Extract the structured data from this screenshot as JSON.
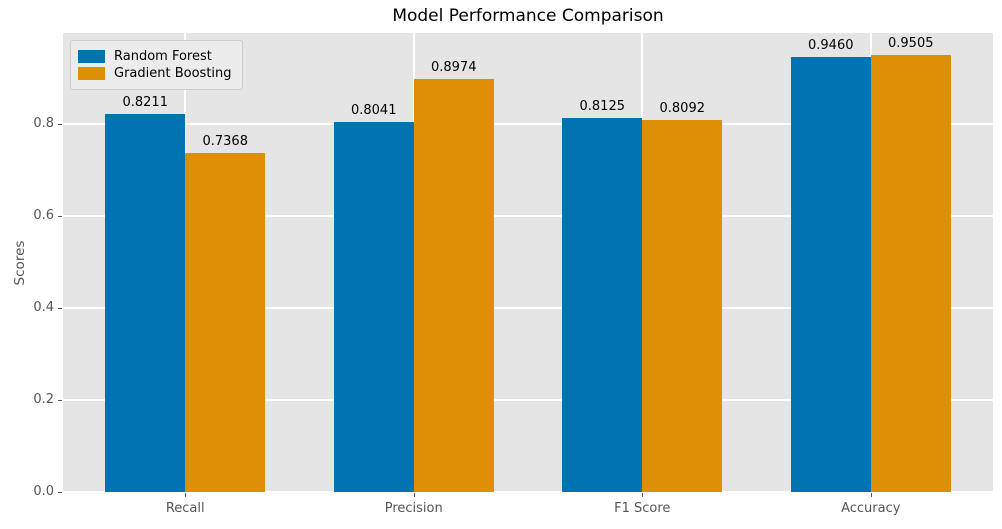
{
  "chart_data": {
    "type": "bar",
    "title": "Model Performance Comparison",
    "xlabel": "",
    "ylabel": "Scores",
    "categories": [
      "Recall",
      "Precision",
      "F1 Score",
      "Accuracy"
    ],
    "series": [
      {
        "name": "Random Forest",
        "color": "#0173b2",
        "values": [
          0.8211,
          0.8041,
          0.8125,
          0.946
        ]
      },
      {
        "name": "Gradient Boosting",
        "color": "#de8f05",
        "values": [
          0.7368,
          0.8974,
          0.8092,
          0.9505
        ]
      }
    ],
    "bar_value_labels": [
      [
        "0.8211",
        "0.8041",
        "0.8125",
        "0.9460"
      ],
      [
        "0.7368",
        "0.8974",
        "0.8092",
        "0.9505"
      ]
    ],
    "ylim": [
      0,
      0.998
    ],
    "yticks": [
      "0.0",
      "0.2",
      "0.4",
      "0.6",
      "0.8"
    ],
    "ytick_values": [
      0.0,
      0.2,
      0.4,
      0.6,
      0.8
    ],
    "grid": true,
    "legend_position": "upper left",
    "plot_background": "#e5e5e5",
    "grid_color": "#ffffff",
    "tick_label_color": "#555555",
    "title_color": "#000000",
    "bar_width_data_units": 0.35
  }
}
